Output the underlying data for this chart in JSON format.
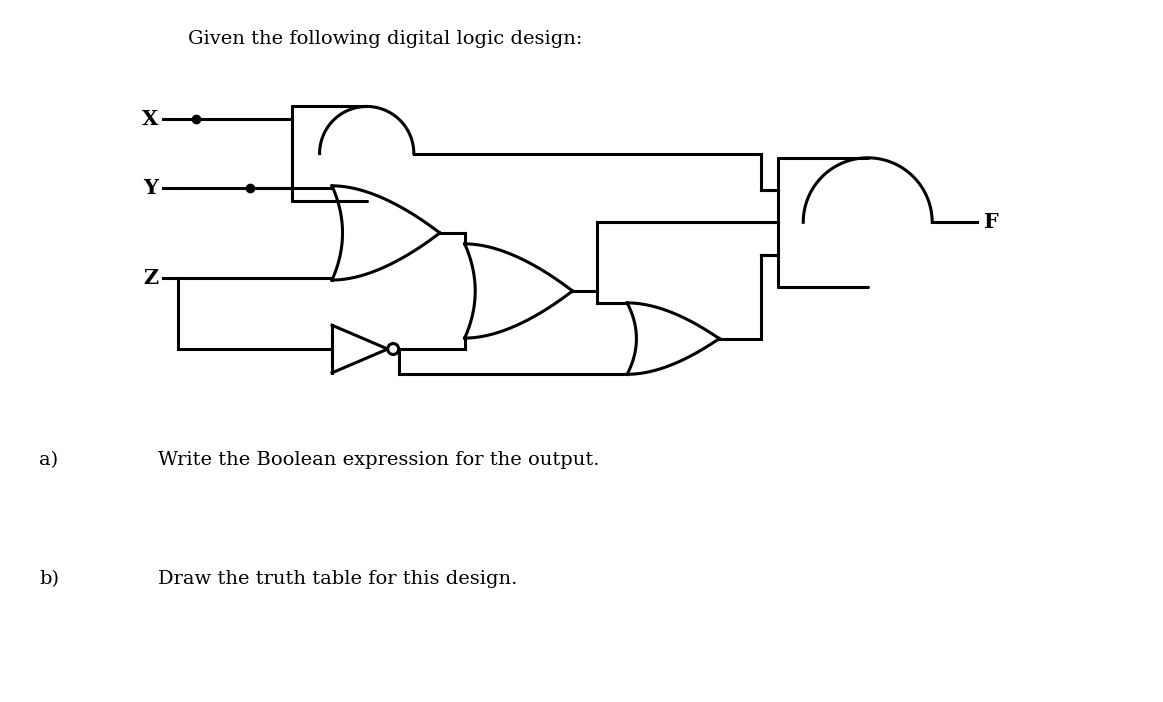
{
  "title": "Given the following digital logic design:",
  "label_a": "a)",
  "label_b": "b)",
  "text_a": "Write the Boolean expression for the output.",
  "text_b": "Draw the truth table for this design.",
  "bg_color": "#ffffff",
  "line_color": "#000000",
  "lw": 2.2,
  "title_fontsize": 14,
  "label_fontsize": 14,
  "text_fontsize": 14,
  "input_fontsize": 15,
  "fig_w": 11.63,
  "fig_h": 7.02,
  "xlim": [
    0,
    11.63
  ],
  "ylim": [
    0,
    7.02
  ]
}
